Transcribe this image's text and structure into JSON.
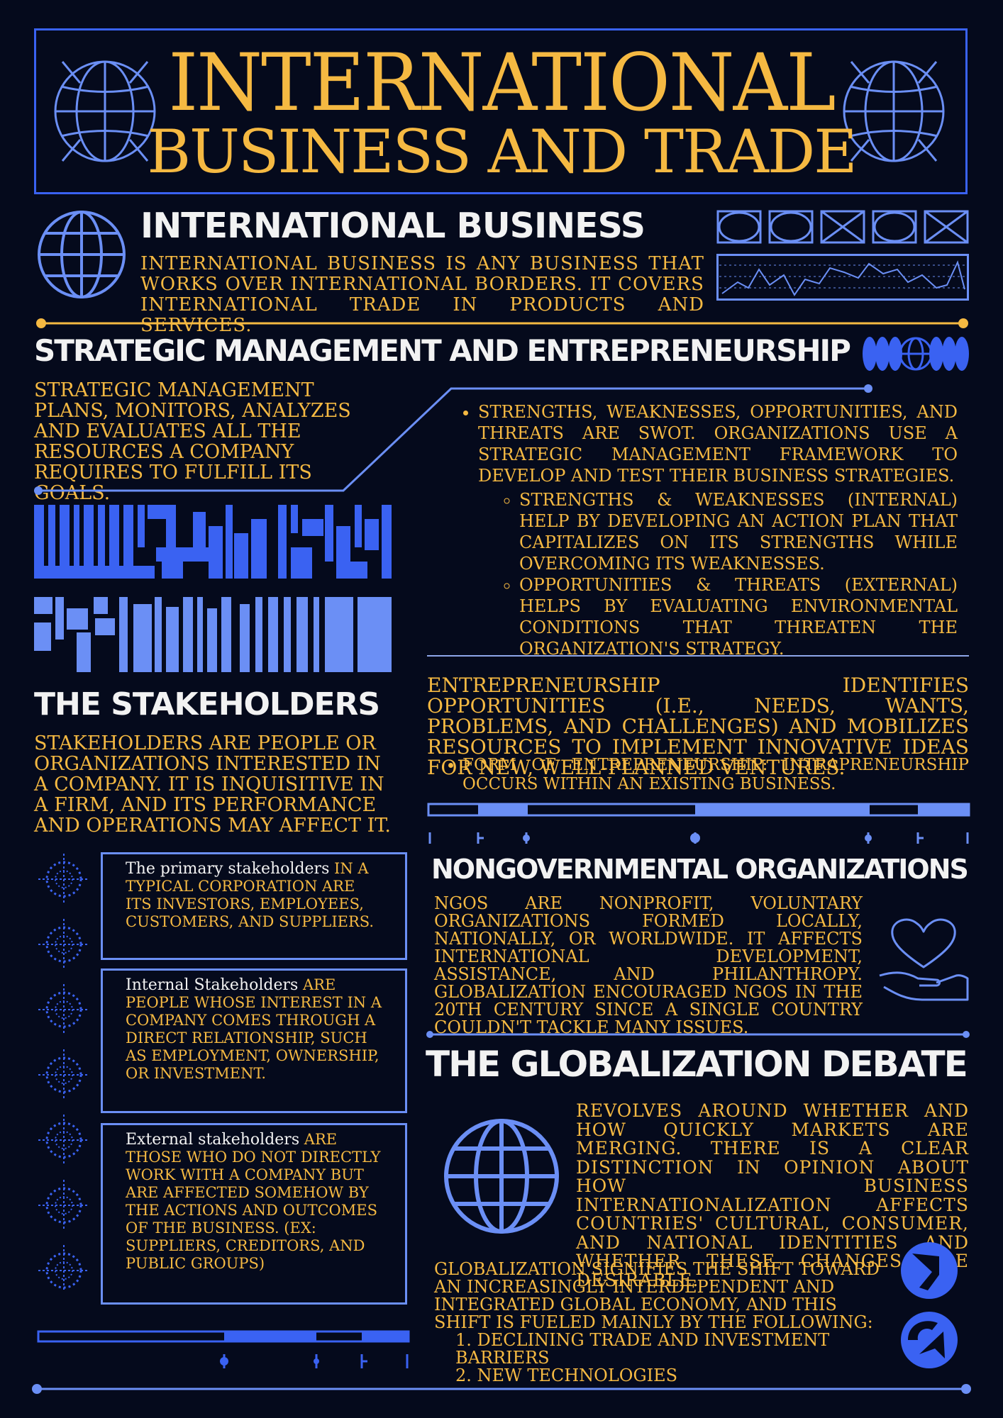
{
  "title": {
    "line1": "INTERNATIONAL",
    "line2": "BUSINESS AND TRADE"
  },
  "intl_business": {
    "heading": "INTERNATIONAL BUSINESS",
    "text": "International business is any business that works over international borders. It covers international trade in products and services."
  },
  "strategic": {
    "heading": "STRATEGIC MANAGEMENT AND ENTREPRENEURSHIP",
    "text": "Strategic management plans, monitors, analyzes and evaluates all the resources a company requires to fulfill its goals.",
    "swot": "Strengths, weaknesses, opportunities, and threats are SWOT. Organizations use a strategic management framework to develop and test their business strategies.",
    "internal": "Strengths & Weaknesses (Internal) help by developing an action plan that capitalizes on its strengths while overcoming its weaknesses.",
    "external": "Opportunities & Threats (External) helps by evaluating environmental conditions that threaten the organization's strategy."
  },
  "entrepreneurship": {
    "text": "Entrepreneurship identifies opportunities (i.e., needs, wants, problems, and challenges) and mobilizes resources to implement innovative ideas for new, well-planned ventures.",
    "form": "Form of Entrepreneurship: Intrapreneurship occurs within an existing business."
  },
  "stakeholders": {
    "heading": "THE STAKEHOLDERS",
    "text": "Stakeholders are people or organizations interested in a company. It is inquisitive in a firm, and its performance and operations may affect it.",
    "primary_lead": "The primary stakeholders",
    "primary_rest": " in a typical corporation are its investors, employees, customers, and suppliers.",
    "internal_lead": "Internal Stakeholders",
    "internal_rest": " are people whose interest in a company comes through a direct relationship, such as employment, ownership, or investment.",
    "external_lead": "External stakeholders",
    "external_rest": " are those who do not directly work with a company but are affected somehow by the actions and outcomes of the business. (ex: suppliers, creditors, and public groups)"
  },
  "ngo": {
    "heading": "NONGOVERNMENTAL ORGANIZATIONS",
    "text": "NGOs are nonprofit, voluntary organizations formed locally, nationally, or worldwide. It affects international development, assistance, and philanthropy. Globalization encouraged NGOs in the 20th century since a single country couldn't tackle many issues."
  },
  "globalization": {
    "heading": "THE GLOBALIZATION DEBATE",
    "text": "revolves around whether and how quickly markets are merging. There is a clear distinction in opinion about how business internationalization affects countries' cultural, consumer, and national identities and whether these changes are desirable.",
    "shift": "Globalization signifies the shift toward an increasingly interdependent and integrated global economy, and this shift is fueled mainly by the following:",
    "items": [
      "1. Declining trade and investment barriers",
      "2. New technologies"
    ]
  },
  "colors": {
    "background": "#050a1c",
    "gold": "#f5b942",
    "blue": "#3a62f2",
    "light_blue": "#6b8ff5",
    "white": "#f2f2f2"
  },
  "icons": [
    "wireframe-globe-icon",
    "globe-icon",
    "heart-hand-icon",
    "crosshair-icon",
    "arrow-circle-icon"
  ]
}
